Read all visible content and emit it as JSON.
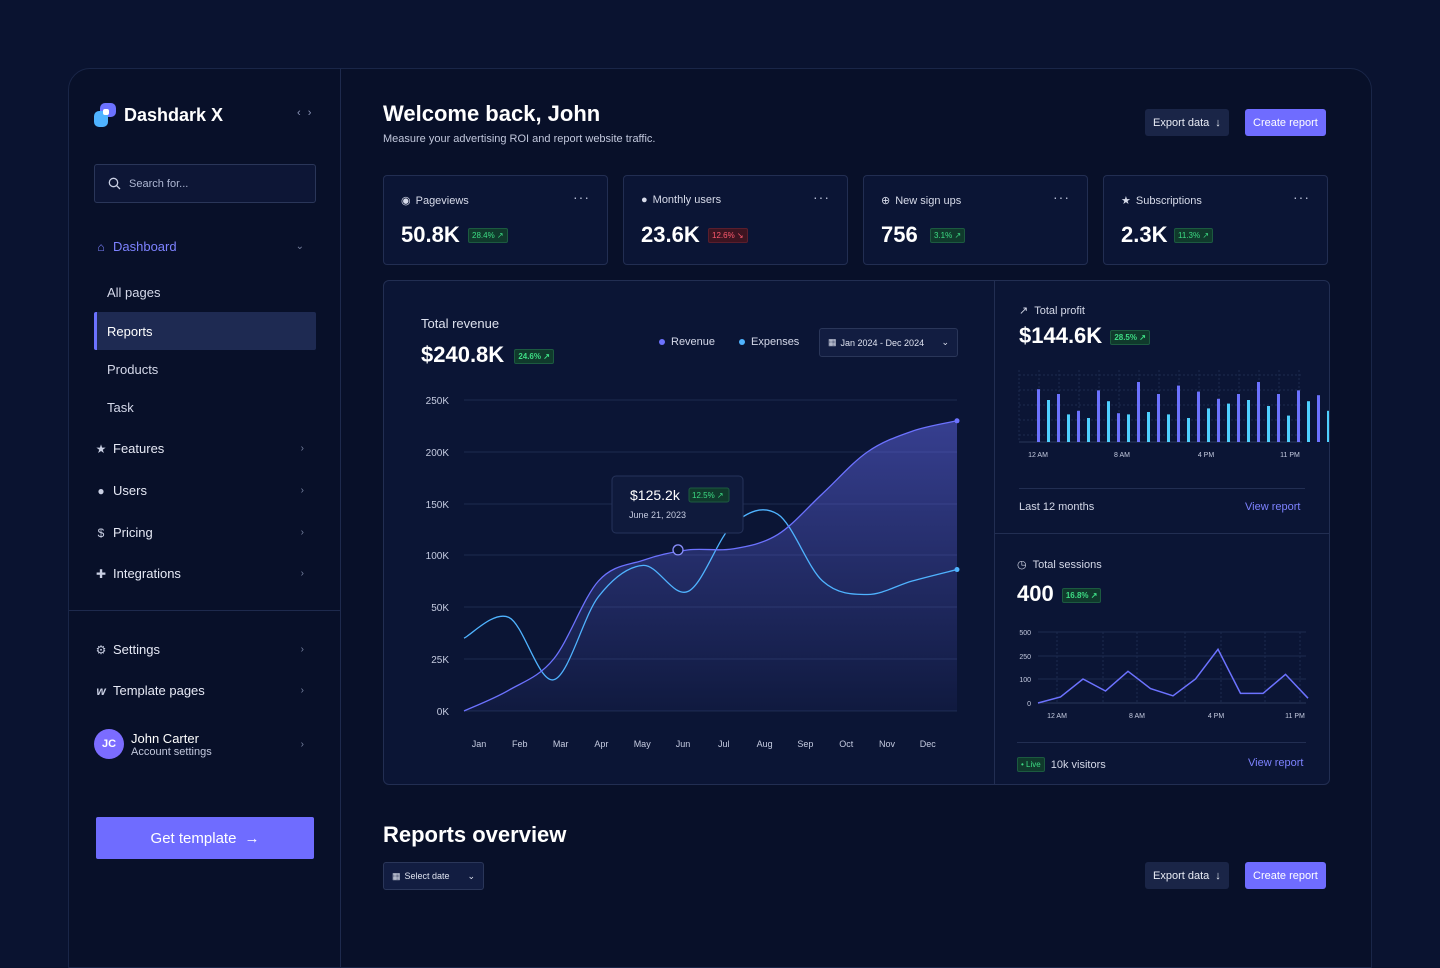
{
  "brand": {
    "name": "Dashdark X",
    "collapse_icon": "chevrons-icon"
  },
  "search": {
    "placeholder": "Search for..."
  },
  "nav": {
    "dashboard": "Dashboard",
    "sub_items": [
      "All pages",
      "Reports",
      "Products",
      "Task"
    ],
    "active_sub": "Reports",
    "features": "Features",
    "users": "Users",
    "pricing": "Pricing",
    "integrations": "Integrations",
    "settings": "Settings",
    "template_pages": "Template pages"
  },
  "user": {
    "name": "John Carter",
    "sub": "Account settings",
    "initials": "JC"
  },
  "get_template": "Get template",
  "header": {
    "title": "Welcome back, John",
    "subtitle": "Measure your advertising ROI and report website traffic.",
    "export": "Export data",
    "create": "Create report"
  },
  "stats": [
    {
      "label": "Pageviews",
      "value": "50.8K",
      "change": "28.4%",
      "trend": "up",
      "icon": "eye-icon"
    },
    {
      "label": "Monthly users",
      "value": "23.6K",
      "change": "12.6%",
      "trend": "down",
      "icon": "user-icon"
    },
    {
      "label": "New sign ups",
      "value": "756",
      "change": "3.1%",
      "trend": "up",
      "icon": "plus-circle-icon"
    },
    {
      "label": "Subscriptions",
      "value": "2.3K",
      "change": "11.3%",
      "trend": "up",
      "icon": "star-icon"
    }
  ],
  "revenue": {
    "title": "Total revenue",
    "value": "$240.8K",
    "change": "24.6%",
    "legend_revenue": "Revenue",
    "legend_expenses": "Expenses",
    "date_range": "Jan 2024 - Dec 2024",
    "tooltip_value": "$125.2k",
    "tooltip_change": "12.5%",
    "tooltip_date": "June 21, 2023"
  },
  "profit": {
    "title": "Total profit",
    "value": "$144.6K",
    "change": "28.5%",
    "footer": "Last 12 months",
    "link": "View report",
    "x_labels": [
      "12 AM",
      "8 AM",
      "4 PM",
      "11 PM"
    ]
  },
  "sessions": {
    "title": "Total sessions",
    "value": "400",
    "change": "16.8%",
    "live": "Live",
    "visitors": "10k visitors",
    "link": "View report",
    "x_labels": [
      "12 AM",
      "8 AM",
      "4 PM",
      "11 PM"
    ]
  },
  "reports": {
    "title": "Reports overview",
    "select_date": "Select date",
    "export": "Export data",
    "create": "Create report"
  },
  "chart_data": [
    {
      "type": "area",
      "title": "Total revenue",
      "categories": [
        "Jan",
        "Feb",
        "Mar",
        "Apr",
        "May",
        "Jun",
        "Jul",
        "Aug",
        "Sep",
        "Oct",
        "Nov",
        "Dec"
      ],
      "y_ticks": [
        "250K",
        "200K",
        "150K",
        "100K",
        "50K",
        "25K",
        "0K"
      ],
      "y_tick_values": [
        250,
        200,
        150,
        100,
        50,
        25,
        0
      ],
      "series": [
        {
          "name": "Revenue",
          "color": "#6c72ff",
          "values": [
            0,
            10,
            25,
            75,
            95,
            105,
            106,
            120,
            160,
            200,
            220,
            230
          ]
        },
        {
          "name": "Expenses",
          "color": "#4fb3ff",
          "values": [
            35,
            45,
            15,
            60,
            90,
            65,
            130,
            140,
            75,
            62,
            75,
            86
          ]
        }
      ],
      "ylim": [
        0,
        250
      ]
    },
    {
      "type": "bar",
      "title": "Total profit",
      "series": [
        {
          "name": "purple",
          "color": "#6c72ff",
          "values": [
            44,
            40,
            26,
            43,
            24,
            50,
            40,
            47,
            42,
            36,
            40,
            50,
            40,
            43,
            39
          ]
        },
        {
          "name": "cyan",
          "color": "#4fd0ff",
          "values": [
            35,
            23,
            20,
            34,
            23,
            25,
            23,
            20,
            28,
            32,
            35,
            30,
            22,
            34,
            26
          ]
        }
      ]
    },
    {
      "type": "line",
      "title": "Total sessions",
      "y_ticks": [
        "500",
        "250",
        "100",
        "0"
      ],
      "values": [
        0,
        25,
        100,
        50,
        150,
        60,
        30,
        100,
        320,
        40,
        40,
        130,
        20
      ]
    }
  ]
}
